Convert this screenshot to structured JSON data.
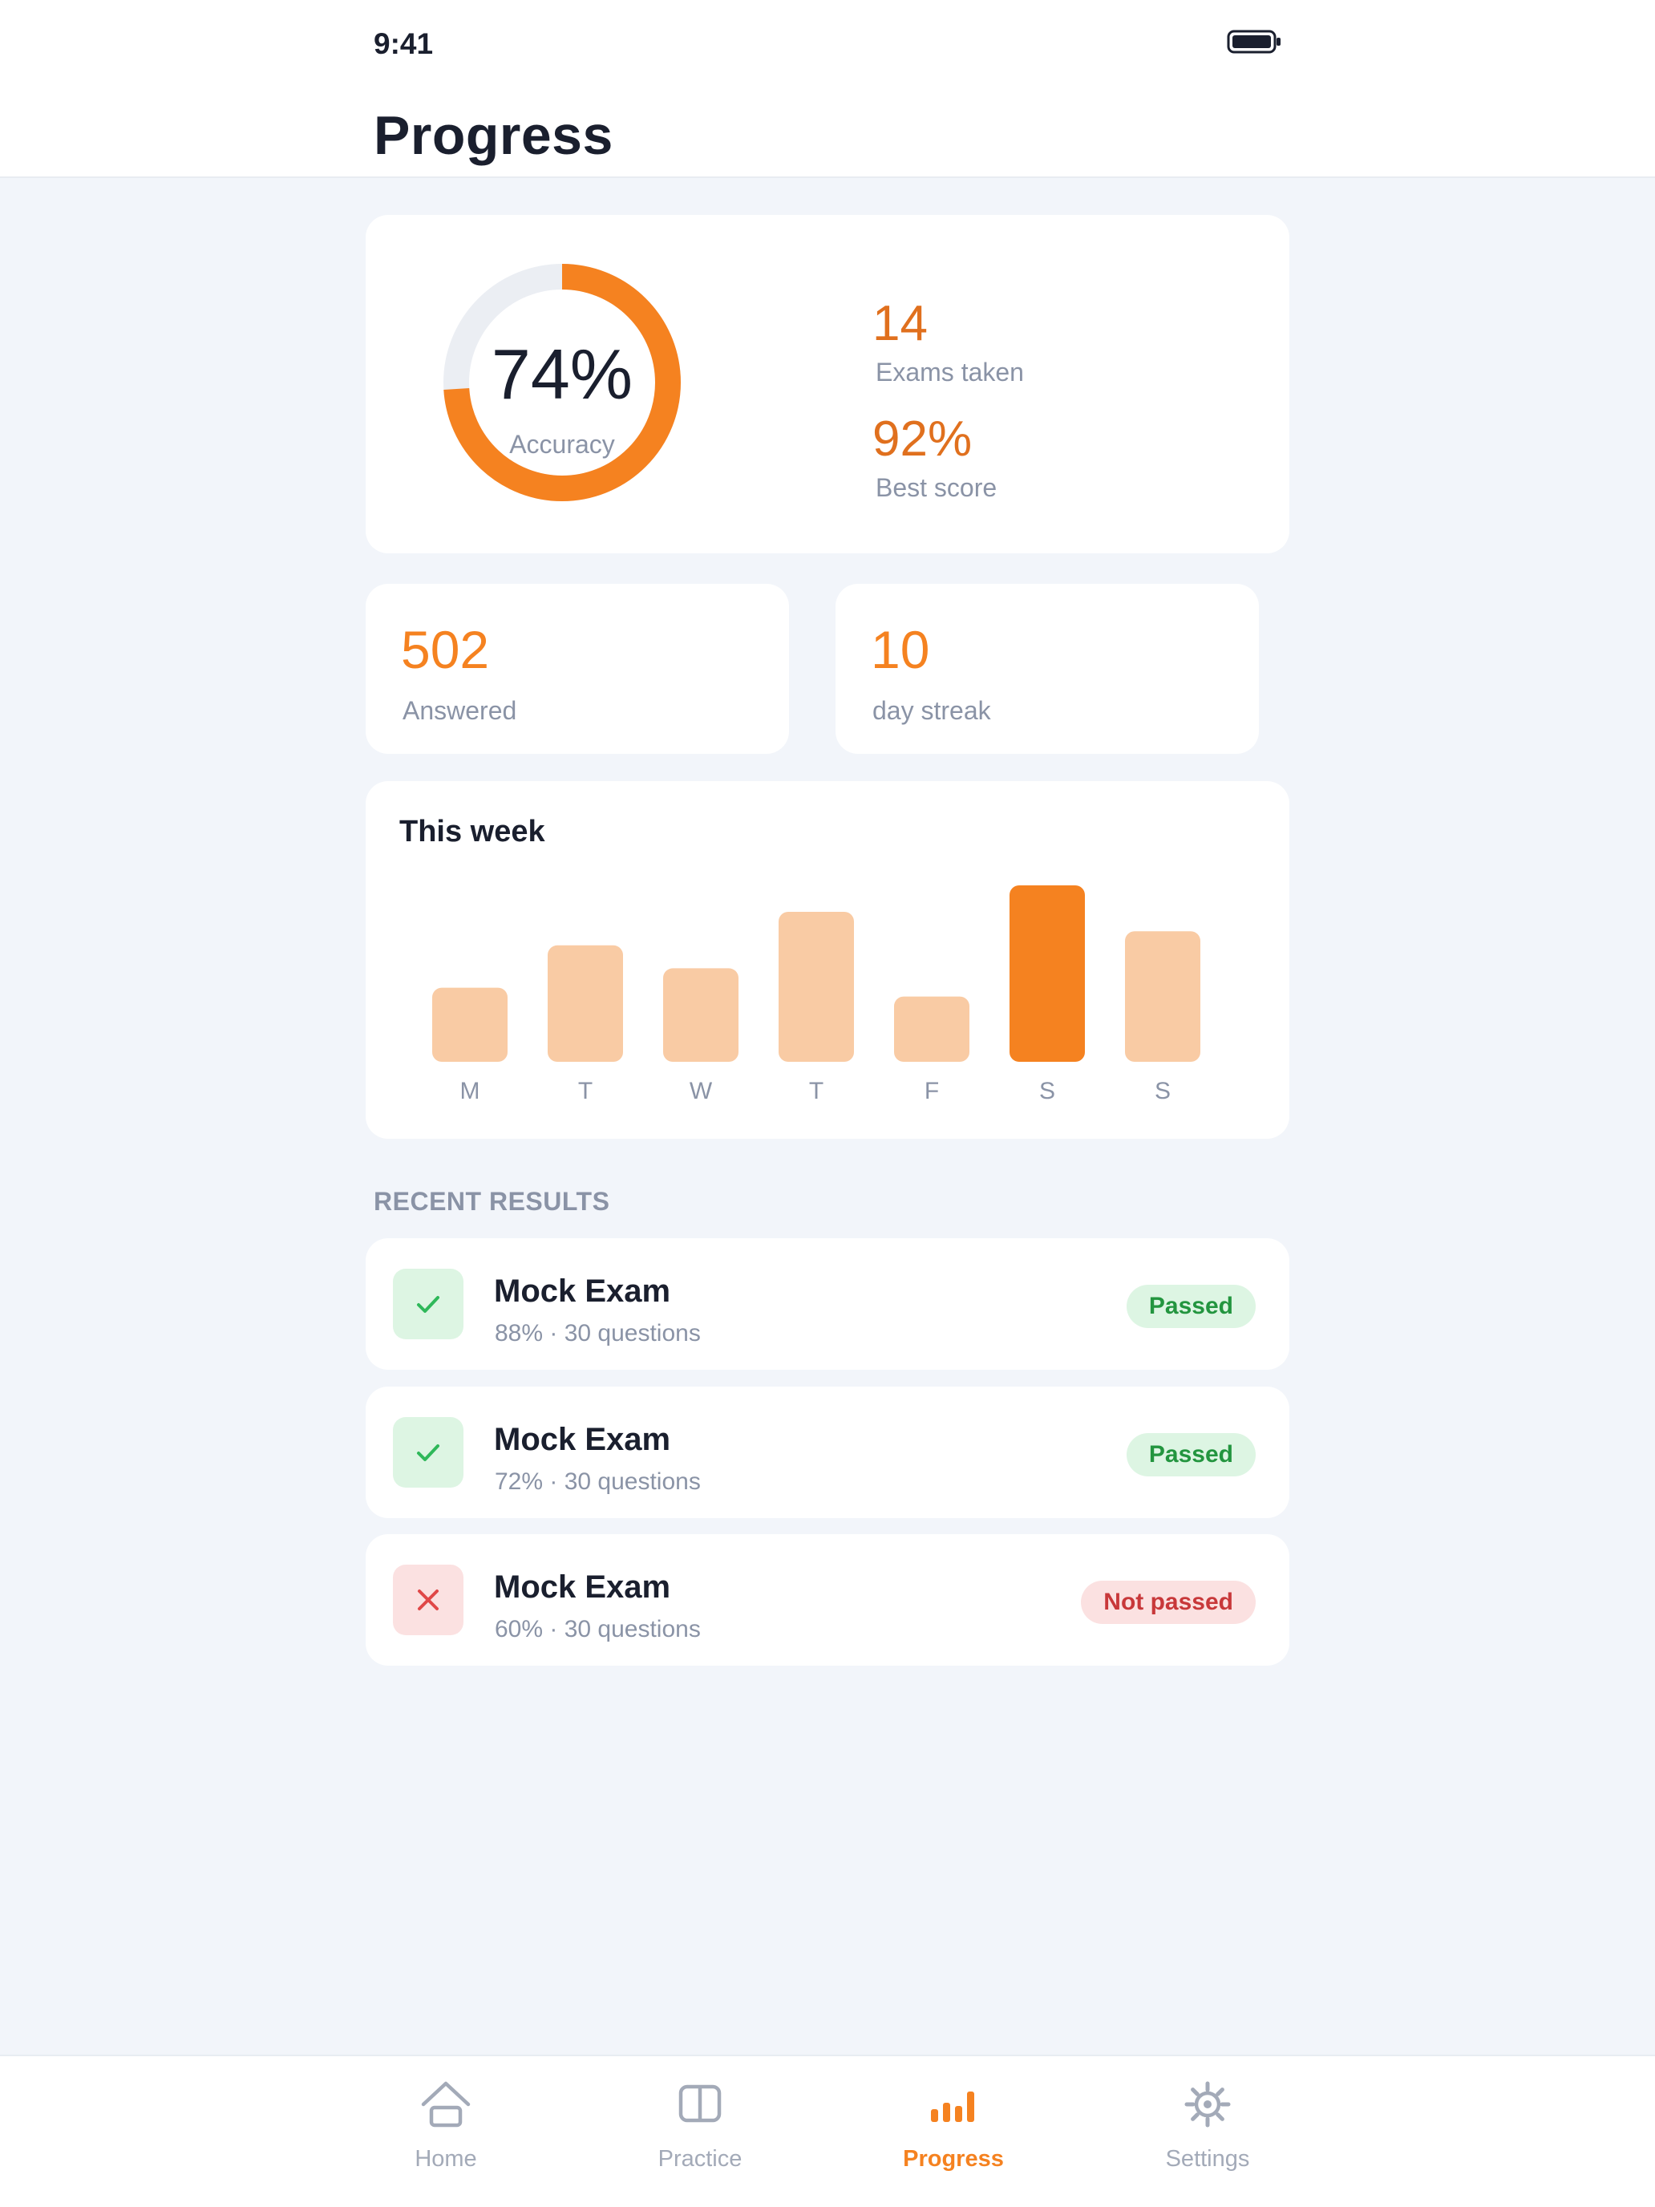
{
  "status_bar": {
    "time": "9:41"
  },
  "header": {
    "title": "Progress"
  },
  "summary": {
    "accuracy_value": "74%",
    "accuracy_label": "Accuracy",
    "accuracy_fraction": 0.74,
    "exams_taken_value": "14",
    "exams_taken_label": "Exams taken",
    "best_score_value": "92%",
    "best_score_label": "Best score"
  },
  "tiles": {
    "answered_value": "502",
    "answered_label": "Answered",
    "streak_value": "10",
    "streak_label": "day streak"
  },
  "week": {
    "title": "This week"
  },
  "chart_data": {
    "type": "bar",
    "title": "This week",
    "categories": [
      "M",
      "T",
      "W",
      "T",
      "F",
      "S",
      "S"
    ],
    "values": [
      0.42,
      0.66,
      0.53,
      0.85,
      0.37,
      1.0,
      0.74
    ],
    "highlight_index": 5,
    "colors": {
      "bar": "#f9cba4",
      "highlight": "#f58220"
    },
    "ylim": [
      0,
      1
    ],
    "grid": false
  },
  "recent": {
    "section_title": "RECENT RESULTS",
    "items": [
      {
        "title": "Mock Exam",
        "subtitle": "88% · 30 questions",
        "status": "Passed",
        "passed": true
      },
      {
        "title": "Mock Exam",
        "subtitle": "72% · 30 questions",
        "status": "Passed",
        "passed": true
      },
      {
        "title": "Mock Exam",
        "subtitle": "60% · 30 questions",
        "status": "Not passed",
        "passed": false
      }
    ]
  },
  "tabs": [
    {
      "label": "Home",
      "icon": "home-icon",
      "active": false
    },
    {
      "label": "Practice",
      "icon": "book-icon",
      "active": false
    },
    {
      "label": "Progress",
      "icon": "bar-chart-icon",
      "active": true
    },
    {
      "label": "Settings",
      "icon": "gear-icon",
      "active": false
    }
  ],
  "colors": {
    "accent": "#f58220",
    "accent_dark": "#e0701e",
    "pass": "#23953f",
    "fail": "#c8383a",
    "track": "#ebeef3"
  }
}
